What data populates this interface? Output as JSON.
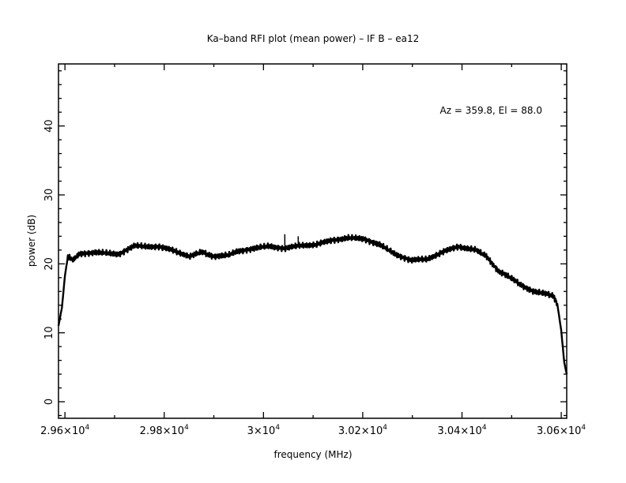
{
  "chart_data": {
    "type": "line",
    "title": "Ka–band RFI plot (mean power) – IF B – ea12",
    "xlabel": "frequency (MHz)",
    "ylabel": "power (dB)",
    "annotation": "Az = 359.8, El = 88.0",
    "xlim": [
      29587,
      30611
    ],
    "ylim": [
      -2.4,
      49
    ],
    "grid": false,
    "x_ticks": [
      {
        "value": 29600,
        "mantissa": "2.96",
        "exp": "4"
      },
      {
        "value": 29800,
        "mantissa": "2.98",
        "exp": "4"
      },
      {
        "value": 30000,
        "mantissa": "3",
        "exp": "4"
      },
      {
        "value": 30200,
        "mantissa": "3.02",
        "exp": "4"
      },
      {
        "value": 30400,
        "mantissa": "3.04",
        "exp": "4"
      },
      {
        "value": 30600,
        "mantissa": "3.06",
        "exp": "4"
      }
    ],
    "x_minor_step": 100,
    "y_ticks": [
      {
        "value": 0,
        "label": "0"
      },
      {
        "value": 10,
        "label": "10"
      },
      {
        "value": 20,
        "label": "20"
      },
      {
        "value": 30,
        "label": "30"
      },
      {
        "value": 40,
        "label": "40"
      }
    ],
    "y_minor_step": 2,
    "series": [
      {
        "name": "mean power",
        "color": "#000000",
        "x": [
          29587,
          29594,
          29600,
          29606,
          29616,
          29629,
          29661,
          29708,
          29740,
          29788,
          29820,
          29852,
          29875,
          29899,
          29931,
          29947,
          29979,
          30011,
          30043,
          30075,
          30106,
          30138,
          30170,
          30202,
          30234,
          30266,
          30297,
          30329,
          30361,
          30393,
          30425,
          30449,
          30473,
          30497,
          30520,
          30544,
          30584,
          30592,
          30600,
          30606,
          30611
        ],
        "y": [
          11.0,
          13.7,
          18.3,
          21.1,
          20.5,
          21.4,
          21.7,
          21.4,
          22.6,
          22.5,
          21.9,
          21.1,
          21.7,
          21.1,
          21.3,
          21.8,
          22.2,
          22.6,
          22.2,
          22.7,
          22.8,
          23.4,
          23.8,
          23.6,
          22.8,
          21.4,
          20.5,
          20.7,
          21.7,
          22.5,
          22.1,
          21.1,
          19.0,
          18.0,
          16.9,
          16.0,
          15.4,
          14.2,
          10.3,
          5.7,
          4.0
        ]
      }
    ],
    "spikes": [
      {
        "x": 30043,
        "y": 24.3
      },
      {
        "x": 30070,
        "y": 24.0
      }
    ]
  }
}
